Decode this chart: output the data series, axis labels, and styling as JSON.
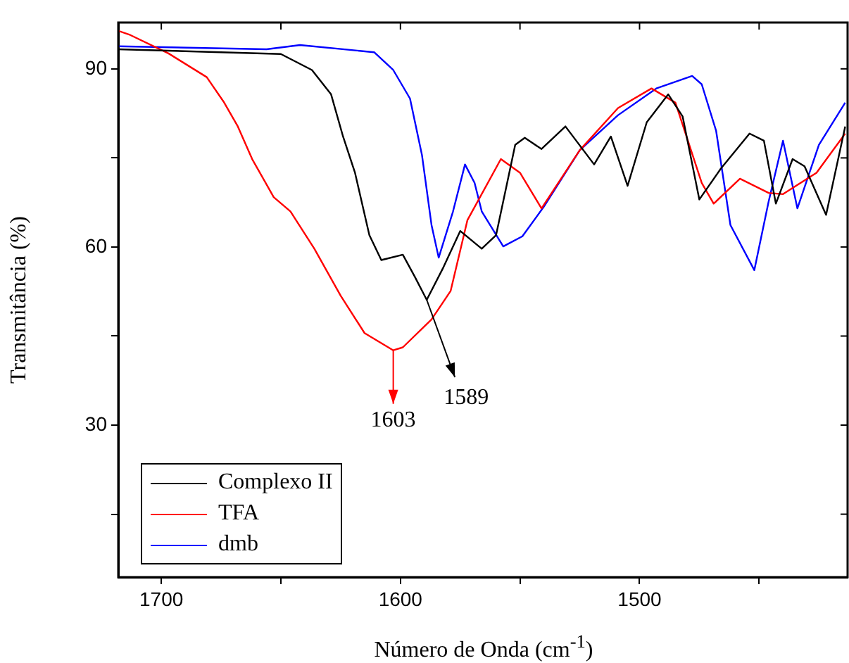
{
  "chart_data": {
    "type": "line",
    "xlabel": "Número de Onda (cm$^{-1}$)",
    "ylabel": "Transmitância (%)",
    "xlim": [
      1718,
      1413
    ],
    "ylim": [
      4.4,
      97.8
    ],
    "xticks": [
      1700,
      {
        "value": 1650,
        "label": null
      },
      1600,
      {
        "value": 1550,
        "label": null
      },
      1500,
      {
        "value": 1450,
        "label": null
      }
    ],
    "yticks": [
      {
        "value": 15,
        "label": null
      },
      30,
      {
        "value": 45,
        "label": null
      },
      60,
      {
        "value": 75,
        "label": null
      },
      90
    ],
    "grid": false,
    "legend": "bottom left",
    "annotations": [
      {
        "text": "1603",
        "x": 1603,
        "y": 42.6
      },
      {
        "text": "1589",
        "x": 1589,
        "y": 51.1
      }
    ],
    "series": [
      {
        "name": "Complexo II",
        "color": "#000000",
        "x": [
          1718,
          1650,
          1637,
          1629,
          1624,
          1619,
          1613,
          1608,
          1599,
          1594,
          1589,
          1582,
          1575,
          1566,
          1560,
          1552,
          1548,
          1541,
          1531,
          1519,
          1512,
          1505,
          1497,
          1488,
          1482,
          1475,
          1466,
          1454,
          1448,
          1443,
          1436,
          1431,
          1422,
          1414
        ],
        "values": [
          93.3,
          92.5,
          89.8,
          85.7,
          78.6,
          72.5,
          62,
          57.8,
          58.7,
          55,
          51.1,
          56.6,
          62.7,
          59.7,
          62,
          77.2,
          78.4,
          76.5,
          80.3,
          73.9,
          78.6,
          70.3,
          81,
          85.7,
          82,
          68,
          73.2,
          79.1,
          77.9,
          67.3,
          74.8,
          73.6,
          65.4,
          80.3
        ]
      },
      {
        "name": "TFA",
        "color": "#ff0000",
        "x": [
          1718,
          1713,
          1697,
          1681,
          1674,
          1668,
          1662,
          1653,
          1646,
          1636,
          1625,
          1615,
          1603,
          1599,
          1587,
          1579,
          1572,
          1558,
          1550,
          1541,
          1525,
          1509,
          1495,
          1485,
          1474,
          1469,
          1458,
          1446,
          1440,
          1426,
          1414
        ],
        "values": [
          96.4,
          95.7,
          92.6,
          88.6,
          84.5,
          80.3,
          74.8,
          68.4,
          66,
          59.7,
          51.8,
          45.5,
          42.6,
          43.1,
          47.8,
          52.6,
          64.5,
          74.8,
          72.5,
          66.5,
          76.3,
          83.4,
          86.7,
          84.3,
          70.8,
          67.3,
          71.5,
          69.1,
          68.9,
          72.5,
          79.1
        ]
      },
      {
        "name": "dmb",
        "color": "#0000ff",
        "x": [
          1718,
          1656,
          1642,
          1611,
          1603,
          1596,
          1591,
          1587,
          1584,
          1578,
          1573,
          1569,
          1566,
          1557,
          1549,
          1540,
          1525,
          1509,
          1493,
          1478,
          1474,
          1468,
          1462,
          1452,
          1446,
          1440,
          1434,
          1425,
          1414
        ],
        "values": [
          93.8,
          93.3,
          94,
          92.8,
          89.8,
          85,
          75.5,
          63.7,
          58.2,
          66,
          73.9,
          70.8,
          66,
          60.1,
          61.8,
          66.8,
          76.3,
          82.2,
          86.7,
          88.8,
          87.4,
          79.6,
          63.7,
          56.1,
          67.7,
          77.9,
          66.5,
          77.2,
          84.3
        ]
      }
    ]
  }
}
